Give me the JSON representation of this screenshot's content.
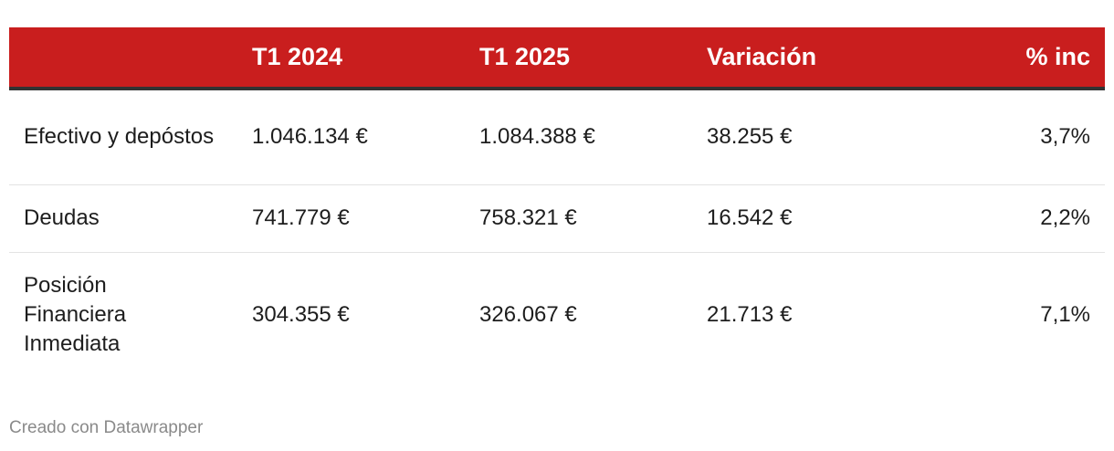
{
  "chart_data": {
    "type": "table",
    "columns": [
      "",
      "T1 2024",
      "T1 2025",
      "Variación",
      "% inc"
    ],
    "rows": [
      {
        "label": "Efectivo y depóstos",
        "t1_2024": "1.046.134 €",
        "t1_2025": "1.084.388 €",
        "variacion": "38.255 €",
        "inc": "3,7%"
      },
      {
        "label": "Deudas",
        "t1_2024": "741.779 €",
        "t1_2025": "758.321 €",
        "variacion": "16.542 €",
        "inc": "2,2%"
      },
      {
        "label": "Posición Financiera Inmediata",
        "t1_2024": "304.355 €",
        "t1_2025": "326.067 €",
        "variacion": "21.713 €",
        "inc": "7,1%"
      }
    ]
  },
  "colors": {
    "header_bg": "#c91e1e",
    "header_text": "#ffffff",
    "header_rule": "#333333"
  },
  "footer": {
    "credit": "Creado con Datawrapper"
  }
}
